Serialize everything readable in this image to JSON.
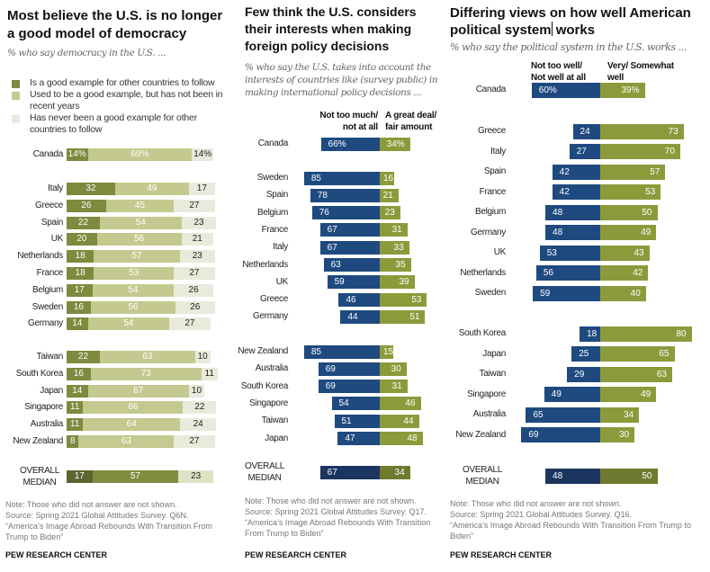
{
  "colors": {
    "c1_good": "#7e8a3e",
    "c1_used": "#c4c98f",
    "c1_never": "#e9eadb",
    "c1_med_good": "#5c6630",
    "c1_med_used": "#818c40",
    "c1_med_never": "#dfe2c4",
    "blue": "#1f4a80",
    "olive": "#8d9a3b",
    "med_blue": "#1b3560",
    "med_olive": "#6f792f"
  },
  "chart_data": [
    {
      "type": "bar",
      "stacked": true,
      "title": "Most believe the U.S. is no longer a good model of democracy",
      "subtitle": "% who say democracy in the U.S. ...",
      "legend": [
        "Is a good example for other countries to follow",
        "Used to be a good example, but has not been in recent years",
        "Has never been a good example for other countries to follow"
      ],
      "groups": [
        [
          {
            "country": "Canada",
            "values": [
              14,
              69,
              14
            ],
            "labels": [
              "14%",
              "69%",
              "14%"
            ]
          }
        ],
        [
          {
            "country": "Italy",
            "values": [
              32,
              49,
              17
            ]
          },
          {
            "country": "Greece",
            "values": [
              26,
              45,
              27
            ]
          },
          {
            "country": "Spain",
            "values": [
              22,
              54,
              23
            ]
          },
          {
            "country": "UK",
            "values": [
              20,
              56,
              21
            ]
          },
          {
            "country": "Netherlands",
            "values": [
              18,
              57,
              23
            ]
          },
          {
            "country": "France",
            "values": [
              18,
              53,
              27
            ]
          },
          {
            "country": "Belgium",
            "values": [
              17,
              54,
              26
            ]
          },
          {
            "country": "Sweden",
            "values": [
              16,
              56,
              26
            ]
          },
          {
            "country": "Germany",
            "values": [
              14,
              54,
              27
            ]
          }
        ],
        [
          {
            "country": "Taiwan",
            "values": [
              22,
              63,
              10
            ]
          },
          {
            "country": "South Korea",
            "values": [
              16,
              73,
              11
            ]
          },
          {
            "country": "Japan",
            "values": [
              14,
              67,
              10
            ]
          },
          {
            "country": "Singapore",
            "values": [
              11,
              66,
              22
            ]
          },
          {
            "country": "Australia",
            "values": [
              11,
              64,
              24
            ]
          },
          {
            "country": "New Zealand",
            "values": [
              8,
              63,
              27
            ]
          }
        ]
      ],
      "median": {
        "country": "OVERALL MEDIAN",
        "values": [
          17,
          57,
          23
        ]
      },
      "note": "Note: Those who did not answer are not shown.",
      "source": "Source: Spring 2021 Global Attitudes Survey. Q6N.",
      "report": "“America’s Image Abroad Rebounds With Transition From Trump to Biden”",
      "credit": "PEW RESEARCH CENTER"
    },
    {
      "type": "bar",
      "diverging": true,
      "title": "Few think the U.S. considers their interests when making foreign policy decisions",
      "subtitle": "% who say the U.S. takes into account the interests of countries like (survey public) in making international policy decisions ...",
      "columns": [
        "Not too much/ not at all",
        "A great deal/ fair amount"
      ],
      "groups": [
        [
          {
            "country": "Canada",
            "values": [
              66,
              34
            ],
            "labels": [
              "66%",
              "34%"
            ]
          }
        ],
        [
          {
            "country": "Sweden",
            "values": [
              85,
              16
            ]
          },
          {
            "country": "Spain",
            "values": [
              78,
              21
            ]
          },
          {
            "country": "Belgium",
            "values": [
              76,
              23
            ]
          },
          {
            "country": "France",
            "values": [
              67,
              31
            ]
          },
          {
            "country": "Italy",
            "values": [
              67,
              33
            ]
          },
          {
            "country": "Netherlands",
            "values": [
              63,
              35
            ]
          },
          {
            "country": "UK",
            "values": [
              59,
              39
            ]
          },
          {
            "country": "Greece",
            "values": [
              46,
              53
            ]
          },
          {
            "country": "Germany",
            "values": [
              44,
              51
            ]
          }
        ],
        [
          {
            "country": "New Zealand",
            "values": [
              85,
              15
            ]
          },
          {
            "country": "Australia",
            "values": [
              69,
              30
            ]
          },
          {
            "country": "South Korea",
            "values": [
              69,
              31
            ]
          },
          {
            "country": "Singapore",
            "values": [
              54,
              46
            ]
          },
          {
            "country": "Taiwan",
            "values": [
              51,
              44
            ]
          },
          {
            "country": "Japan",
            "values": [
              47,
              48
            ]
          }
        ]
      ],
      "median": {
        "country": "OVERALL MEDIAN",
        "values": [
          67,
          34
        ]
      },
      "note": "Note: Those who did not answer are not shown.",
      "source": "Source: Spring 2021 Global Attitudes Survey. Q17.",
      "report": "“America’s Image Abroad Rebounds With Transition From Trump to Biden”",
      "credit": "PEW RESEARCH CENTER"
    },
    {
      "type": "bar",
      "diverging": true,
      "title": "Differing views on how well American political system works",
      "title_a": "Differing views on how well American political system",
      "title_b": " works",
      "subtitle": "% who say the political system in the U.S. works ...",
      "columns": [
        "Not too well/ Not well at all",
        "Very/ Somewhat well"
      ],
      "groups": [
        [
          {
            "country": "Canada",
            "values": [
              60,
              39
            ],
            "labels": [
              "60%",
              "39%"
            ]
          }
        ],
        [
          {
            "country": "Greece",
            "values": [
              24,
              73
            ]
          },
          {
            "country": "Italy",
            "values": [
              27,
              70
            ]
          },
          {
            "country": "Spain",
            "values": [
              42,
              57
            ]
          },
          {
            "country": "France",
            "values": [
              42,
              53
            ]
          },
          {
            "country": "Belgium",
            "values": [
              48,
              50
            ]
          },
          {
            "country": "Germany",
            "values": [
              48,
              49
            ]
          },
          {
            "country": "UK",
            "values": [
              53,
              43
            ]
          },
          {
            "country": "Netherlands",
            "values": [
              56,
              42
            ]
          },
          {
            "country": "Sweden",
            "values": [
              59,
              40
            ]
          }
        ],
        [
          {
            "country": "South Korea",
            "values": [
              18,
              80
            ]
          },
          {
            "country": "Japan",
            "values": [
              25,
              65
            ]
          },
          {
            "country": "Taiwan",
            "values": [
              29,
              63
            ]
          },
          {
            "country": "Singapore",
            "values": [
              49,
              49
            ]
          },
          {
            "country": "Australia",
            "values": [
              65,
              34
            ]
          },
          {
            "country": "New Zealand",
            "values": [
              69,
              30
            ]
          }
        ]
      ],
      "median": {
        "country": "OVERALL MEDIAN",
        "values": [
          48,
          50
        ]
      },
      "note": "Note: Those who did not answer are not shown.",
      "source": "Source: Spring 2021 Global Attitudes Survey. Q16.",
      "report": "“America’s Image Abroad Rebounds With Transition From Trump to Biden”",
      "credit": "PEW RESEARCH CENTER"
    }
  ]
}
